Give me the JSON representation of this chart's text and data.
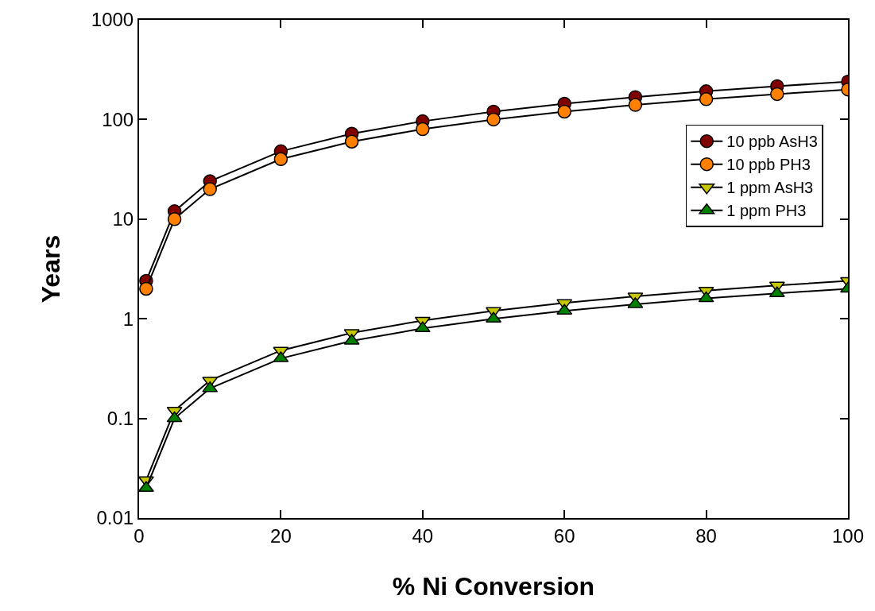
{
  "chart_data": {
    "type": "line",
    "xlabel": "% Ni Conversion",
    "ylabel": "Years",
    "x": [
      1,
      5,
      10,
      20,
      30,
      40,
      50,
      60,
      70,
      80,
      90,
      100
    ],
    "series": [
      {
        "name": "10 ppb AsH3",
        "color": "#800000",
        "marker": "circle",
        "values": [
          2.4,
          12,
          24,
          48,
          72,
          96,
          120,
          144,
          168,
          192,
          216,
          240
        ]
      },
      {
        "name": "10 ppb PH3",
        "color": "#ff8000",
        "marker": "circle",
        "values": [
          2,
          10,
          20,
          40,
          60,
          80,
          100,
          120,
          140,
          160,
          180,
          200
        ]
      },
      {
        "name": "1 ppm AsH3",
        "color": "#c8c800",
        "marker": "triangle-down",
        "values": [
          0.024,
          0.12,
          0.24,
          0.48,
          0.72,
          0.96,
          1.2,
          1.44,
          1.68,
          1.92,
          2.16,
          2.4
        ]
      },
      {
        "name": "1 ppm PH3",
        "color": "#008000",
        "marker": "triangle",
        "values": [
          0.02,
          0.1,
          0.2,
          0.4,
          0.6,
          0.8,
          1,
          1.2,
          1.4,
          1.6,
          1.8,
          2
        ]
      }
    ],
    "xlim": [
      0,
      100
    ],
    "xticks": [
      0,
      20,
      40,
      60,
      80,
      100
    ],
    "ylim": [
      0.01,
      1000
    ],
    "yticks": [
      0.01,
      0.1,
      1,
      10,
      100,
      1000
    ],
    "log": "y",
    "grid": false,
    "legend": "top right",
    "line_style": "solid"
  }
}
